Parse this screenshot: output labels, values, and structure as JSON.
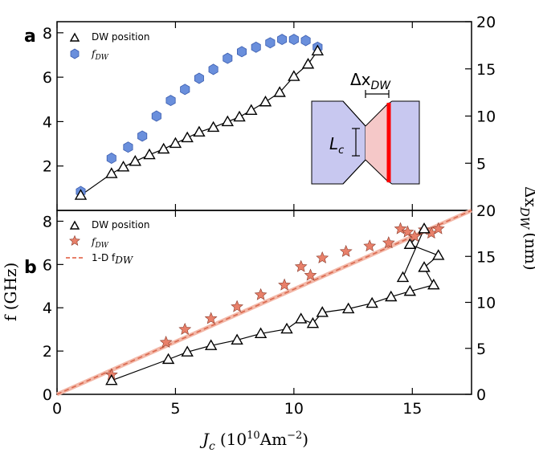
{
  "chart_data": [
    {
      "type": "scatter",
      "panel_label": "a",
      "xlim": [
        0,
        17.5
      ],
      "ylim_left": [
        0,
        8.5
      ],
      "ylim_right": [
        0,
        20
      ],
      "left_ticks": [
        "2",
        "4",
        "6",
        "8"
      ],
      "right_ticks": [
        "5",
        "10",
        "15",
        "20"
      ],
      "legend": [
        {
          "label": "DW position",
          "marker": "triangle"
        },
        {
          "label": "f",
          "sub": "DW",
          "marker": "hexagon"
        }
      ],
      "series": [
        {
          "name": "f_DW",
          "axis": "left",
          "color": "#6a8fdc",
          "x": [
            1.0,
            2.3,
            3.0,
            3.6,
            4.2,
            4.8,
            5.4,
            6.0,
            6.6,
            7.2,
            7.8,
            8.4,
            9.0,
            9.5,
            10.0,
            10.5,
            11.0
          ],
          "y": [
            0.85,
            2.35,
            2.85,
            3.35,
            4.25,
            4.95,
            5.45,
            5.95,
            6.35,
            6.85,
            7.15,
            7.35,
            7.55,
            7.7,
            7.7,
            7.65,
            7.35
          ]
        },
        {
          "name": "DW position",
          "axis": "right",
          "x": [
            1.0,
            2.3,
            2.8,
            3.3,
            3.9,
            4.5,
            5.0,
            5.5,
            6.0,
            6.6,
            7.2,
            7.7,
            8.2,
            8.8,
            9.4,
            10.0,
            10.6,
            11.0
          ],
          "y": [
            1.6,
            3.9,
            4.6,
            5.2,
            5.9,
            6.5,
            7.1,
            7.7,
            8.3,
            8.8,
            9.4,
            9.9,
            10.6,
            11.5,
            12.5,
            14.2,
            15.5,
            16.9
          ]
        }
      ]
    },
    {
      "type": "scatter",
      "panel_label": "b",
      "xlabel": "J_c (10^10 Am^-2)",
      "xlim": [
        0,
        17.5
      ],
      "ylim_left": [
        0,
        8.5
      ],
      "ylim_right": [
        0,
        20
      ],
      "xticks": [
        "0",
        "5",
        "10",
        "15"
      ],
      "left_ticks": [
        "0",
        "2",
        "4",
        "6",
        "8"
      ],
      "right_ticks": [
        "0",
        "5",
        "10",
        "15",
        "20"
      ],
      "legend": [
        {
          "label": "DW position",
          "marker": "triangle"
        },
        {
          "label": "f",
          "sub": "DW",
          "marker": "star"
        },
        {
          "label": "1-D f",
          "sub": "DW",
          "marker": "dashed-line"
        }
      ],
      "series": [
        {
          "name": "f_DW",
          "axis": "left",
          "color": "#e8806a",
          "x": [
            2.3,
            4.6,
            5.4,
            6.5,
            7.6,
            8.6,
            9.6,
            10.3,
            10.7,
            11.2,
            12.2,
            13.2,
            14.0,
            14.5,
            14.8,
            15.1,
            15.5,
            15.8,
            16.1
          ],
          "y": [
            0.9,
            2.4,
            3.0,
            3.5,
            4.05,
            4.6,
            5.05,
            5.9,
            5.5,
            6.3,
            6.6,
            6.85,
            7.0,
            7.65,
            7.5,
            7.3,
            7.6,
            7.45,
            7.65
          ]
        },
        {
          "name": "DW position",
          "axis": "right",
          "x": [
            2.3,
            4.7,
            5.5,
            6.5,
            7.6,
            8.6,
            9.7,
            10.3,
            10.8,
            11.2,
            12.3,
            13.3,
            14.1,
            14.9,
            15.9,
            15.5,
            16.1,
            14.9,
            15.5,
            14.6
          ],
          "y": [
            1.5,
            3.8,
            4.6,
            5.3,
            5.9,
            6.6,
            7.1,
            8.2,
            7.7,
            8.9,
            9.3,
            9.9,
            10.6,
            11.2,
            11.9,
            13.8,
            15.1,
            16.3,
            18.0,
            12.7
          ]
        },
        {
          "name": "1-D f_DW",
          "axis": "left",
          "color": "#e8806a",
          "x": [
            0,
            17.5
          ],
          "y": [
            0,
            8.5
          ]
        }
      ]
    }
  ],
  "shared": {
    "left_axis_title": "f (GHz)",
    "right_axis_title": "Δx",
    "right_axis_sub": "DW",
    "right_axis_unit": "(nm)",
    "x_axis_title_main": "J",
    "x_axis_title_sub": "c",
    "x_axis_title_unit": "(10",
    "x_axis_title_exp": "10",
    "x_axis_title_rest": "Am",
    "x_axis_title_exp2": "−2",
    "x_axis_title_close": ")"
  },
  "inset": {
    "label_dx": "Δx",
    "label_dx_sub": "DW",
    "label_l": "L",
    "label_l_sub": "c",
    "pad_color": "#c8c8f0",
    "domain_color": "#f5c8c8",
    "wall_color": "#ff0000"
  }
}
